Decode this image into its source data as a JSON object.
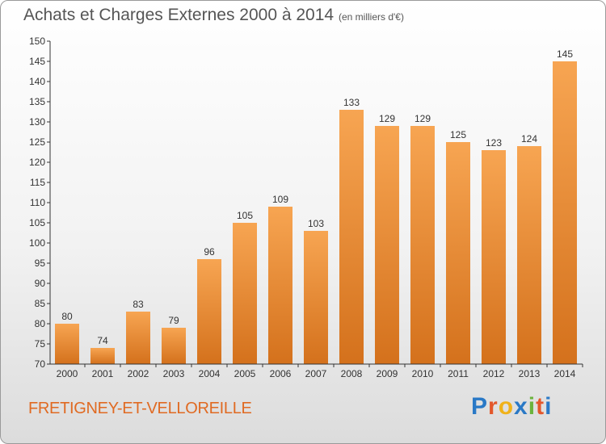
{
  "header": {
    "title": "Achats et Charges Externes 2000 à 2014",
    "subtitle": "(en milliers d'€)"
  },
  "footer": {
    "city": "FRETIGNEY-ET-VELLOREILLE",
    "logo": "Proxiti"
  },
  "colors": {
    "bar_top": "#f7a552",
    "bar_bottom": "#d4711c",
    "axis": "#333333",
    "city_text": "#e06a22"
  },
  "chart_data": {
    "type": "bar",
    "title": "Achats et Charges Externes 2000 à 2014",
    "subtitle": "(en milliers d'€)",
    "categories": [
      "2000",
      "2001",
      "2002",
      "2003",
      "2004",
      "2005",
      "2006",
      "2007",
      "2008",
      "2009",
      "2010",
      "2011",
      "2012",
      "2013",
      "2014"
    ],
    "values": [
      80,
      74,
      83,
      79,
      96,
      105,
      109,
      103,
      133,
      129,
      129,
      125,
      123,
      124,
      145
    ],
    "ylim": [
      70,
      150
    ],
    "yticks": [
      70,
      75,
      80,
      85,
      90,
      95,
      100,
      105,
      110,
      115,
      120,
      125,
      130,
      135,
      140,
      145,
      150
    ],
    "grid": false,
    "data_labels": true
  }
}
